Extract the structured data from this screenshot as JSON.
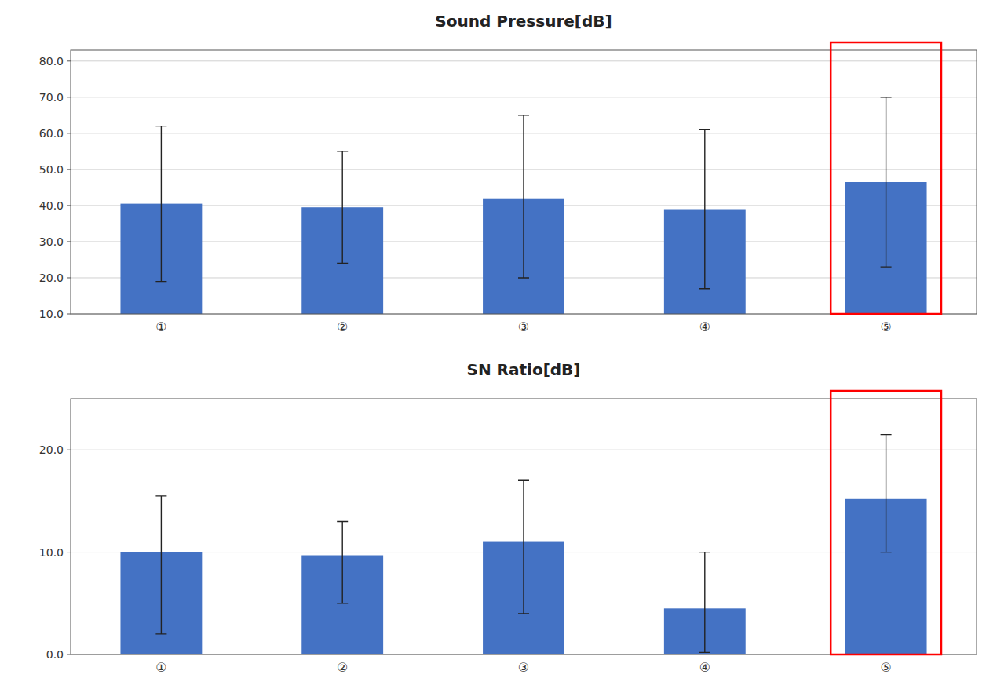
{
  "chart_data": [
    {
      "type": "bar",
      "title": "Sound Pressure[dB]",
      "categories": [
        "①",
        "②",
        "③",
        "④",
        "⑤"
      ],
      "values": [
        40.5,
        39.5,
        42.0,
        39.0,
        46.5
      ],
      "error_minus": [
        21.5,
        15.5,
        22.0,
        22.0,
        23.5
      ],
      "error_plus": [
        21.5,
        15.5,
        23.0,
        22.0,
        23.5
      ],
      "color": "#4472C4",
      "ylim": [
        10.0,
        83.0
      ],
      "yticks": [
        {
          "value": 10.0,
          "label": "10.0"
        },
        {
          "value": 20.0,
          "label": "20.0"
        },
        {
          "value": 30.0,
          "label": "30.0"
        },
        {
          "value": 40.0,
          "label": "40.0"
        },
        {
          "value": 50.0,
          "label": "50.0"
        },
        {
          "value": 60.0,
          "label": "60.0"
        },
        {
          "value": 70.0,
          "label": "70.0"
        },
        {
          "value": 80.0,
          "label": "80.0"
        }
      ],
      "grid": true,
      "highlight": {
        "category": "⑤",
        "color": "red"
      }
    },
    {
      "type": "bar",
      "title": "SN Ratio[dB]",
      "categories": [
        "①",
        "②",
        "③",
        "④",
        "⑤"
      ],
      "values": [
        10.0,
        9.7,
        11.0,
        4.5,
        15.2
      ],
      "error_minus": [
        8.0,
        4.7,
        7.0,
        4.3,
        5.2
      ],
      "error_plus": [
        5.5,
        3.3,
        6.0,
        5.5,
        6.3
      ],
      "color": "#4472C4",
      "ylim": [
        0.0,
        25.0
      ],
      "yticks": [
        {
          "value": 0.0,
          "label": "0.0"
        },
        {
          "value": 10.0,
          "label": "10.0"
        },
        {
          "value": 20.0,
          "label": "20.0"
        }
      ],
      "grid": true,
      "highlight": {
        "category": "⑤",
        "color": "red"
      }
    }
  ]
}
